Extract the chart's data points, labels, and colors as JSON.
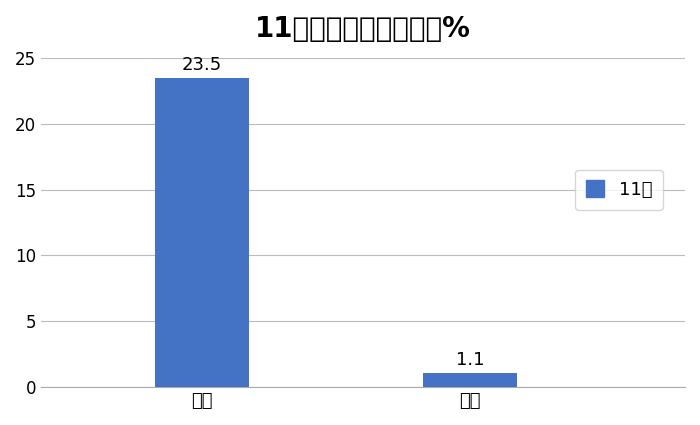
{
  "title": "11月冷藏车销量同环比%",
  "categories": [
    "同比",
    "环比"
  ],
  "values": [
    23.5,
    1.1
  ],
  "bar_color": "#4472C4",
  "ylim": [
    0,
    25
  ],
  "yticks": [
    0,
    5,
    10,
    15,
    20,
    25
  ],
  "legend_label": "11月",
  "background_color": "#ffffff",
  "title_fontsize": 20,
  "label_fontsize": 13,
  "tick_fontsize": 12,
  "bar_width": 0.35,
  "grid_color": "#bbbbbb",
  "spine_color": "#aaaaaa"
}
